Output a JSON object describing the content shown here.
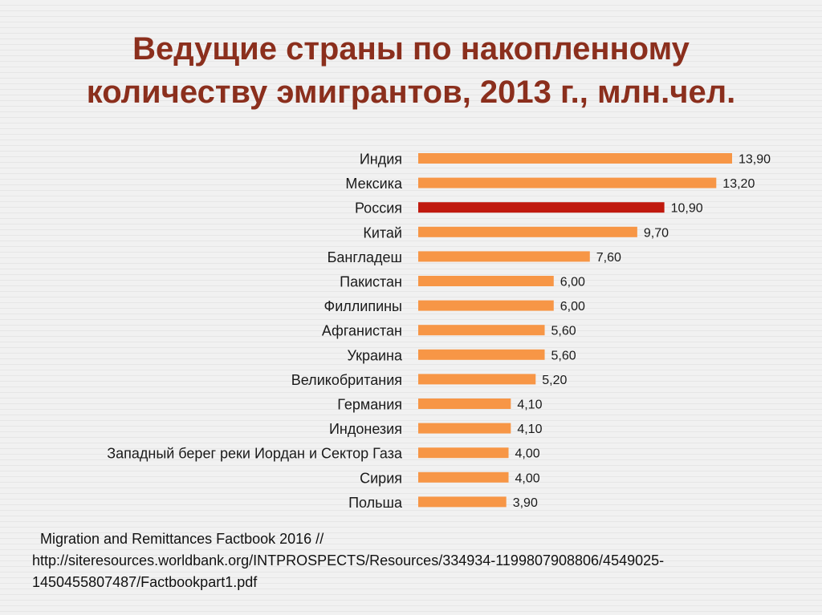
{
  "title": {
    "line1": "Ведущие страны по накопленному",
    "line2": "количеству эмигрантов, 2013 г., млн.чел."
  },
  "colors": {
    "bar": "#f79646",
    "highlight": "#c0190e",
    "title": "#8b2f1d"
  },
  "chart_data": {
    "type": "bar",
    "orientation": "horizontal",
    "title": "Ведущие страны по накопленному количеству эмигрантов, 2013 г., млн.чел.",
    "categories": [
      "Индия",
      "Мексика",
      "Россия",
      "Китай",
      "Бангладеш",
      "Пакистан",
      "Филлипины",
      "Афганистан",
      "Украина",
      "Великобритания",
      "Германия",
      "Индонезия",
      "Западный берег реки Иордан и Сектор Газа",
      "Сирия",
      "Польша"
    ],
    "values": [
      13.9,
      13.2,
      10.9,
      9.7,
      7.6,
      6.0,
      6.0,
      5.6,
      5.6,
      5.2,
      4.1,
      4.1,
      4.0,
      4.0,
      3.9
    ],
    "labels": [
      "13,90",
      "13,20",
      "10,90",
      "9,70",
      "7,60",
      "6,00",
      "6,00",
      "5,60",
      "5,60",
      "5,20",
      "4,10",
      "4,10",
      "4,00",
      "4,00",
      "3,90"
    ],
    "highlight": "Россия",
    "xlim": [
      0,
      13.9
    ],
    "xlabel": "",
    "ylabel": ""
  },
  "source": {
    "line1": "Migration and Remittances Factbook 2016 //",
    "line2": "http://siteresources.worldbank.org/INTPROSPECTS/Resources/334934-1199807908806/4549025-",
    "line3": "1450455807487/Factbookpart1.pdf"
  }
}
